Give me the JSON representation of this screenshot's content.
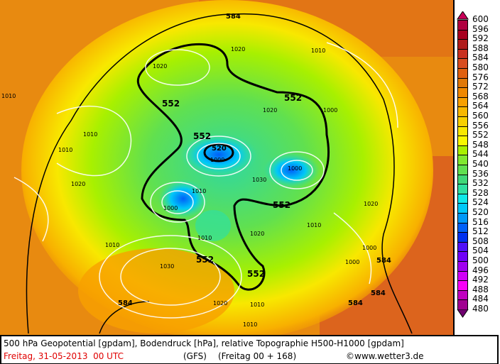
{
  "footer": {
    "line1": "500 hPa Geopotential [gpdam], Bodendruck [hPa], relative Topographie H500-H1000 [gpdam]",
    "date": "Freitag, 31-05-2013  00 UTC",
    "model": "(GFS)",
    "forecast": "(Freitag 00 + 168)",
    "copyright": "©www.wetter3.de"
  },
  "legend": {
    "labels": [
      "600",
      "596",
      "592",
      "588",
      "584",
      "580",
      "576",
      "572",
      "568",
      "564",
      "560",
      "556",
      "552",
      "548",
      "544",
      "540",
      "536",
      "532",
      "528",
      "524",
      "520",
      "516",
      "512",
      "508",
      "504",
      "500",
      "496",
      "492",
      "488",
      "484",
      "480"
    ],
    "colors": [
      "#b00040",
      "#a80020",
      "#b01c1c",
      "#c83020",
      "#d84c20",
      "#e06010",
      "#e07808",
      "#f08800",
      "#f8a000",
      "#f8b800",
      "#f8d000",
      "#f8e800",
      "#f8f800",
      "#a8f000",
      "#80e830",
      "#60e050",
      "#40d878",
      "#30e0a0",
      "#10e8e8",
      "#00c8f8",
      "#0098f8",
      "#0060f8",
      "#0030f0",
      "#5010f8",
      "#7000f8",
      "#a000f0",
      "#d000f8",
      "#f800f8",
      "#c000c0",
      "#a00090",
      "#780078"
    ],
    "top_color": "#c80058",
    "bottom_color": "#700070"
  },
  "map": {
    "contour_labels_552": [
      "552",
      "552",
      "552",
      "552",
      "552",
      "552",
      "552",
      "552"
    ],
    "contour_labels_584": [
      "584",
      "584",
      "584",
      "584",
      "584"
    ],
    "pressure_labels": [
      "1010",
      "1010",
      "1020",
      "1020",
      "1010",
      "1000",
      "1020",
      "1010",
      "1000",
      "1000",
      "1020",
      "1030",
      "1010",
      "1000",
      "1010",
      "1020",
      "1030",
      "1010",
      "1020",
      "1010",
      "1000",
      "1000",
      "1010",
      "1020",
      "1010"
    ],
    "low_label": "520"
  }
}
